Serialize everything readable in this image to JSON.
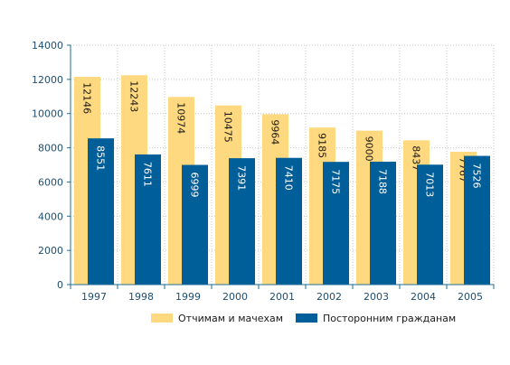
{
  "chart_data": {
    "type": "bar",
    "categories": [
      "1997",
      "1998",
      "1999",
      "2000",
      "2001",
      "2002",
      "2003",
      "2004",
      "2005"
    ],
    "series": [
      {
        "name": "Отчимам и мачехам",
        "color": "#ffd97f",
        "values": [
          12146,
          12243,
          10974,
          10475,
          9964,
          9185,
          9000,
          8437,
          7767
        ]
      },
      {
        "name": "Посторонним гражданам",
        "color": "#005f99",
        "values": [
          8551,
          7611,
          6999,
          7391,
          7410,
          7175,
          7188,
          7013,
          7526
        ]
      }
    ],
    "ylim": [
      0,
      14000
    ],
    "yticks": [
      0,
      2000,
      4000,
      6000,
      8000,
      10000,
      12000,
      14000
    ],
    "grid": true,
    "legend": "bottom",
    "axis_color": "#1f6e96",
    "tick_label_color": "#1f4e6e"
  }
}
